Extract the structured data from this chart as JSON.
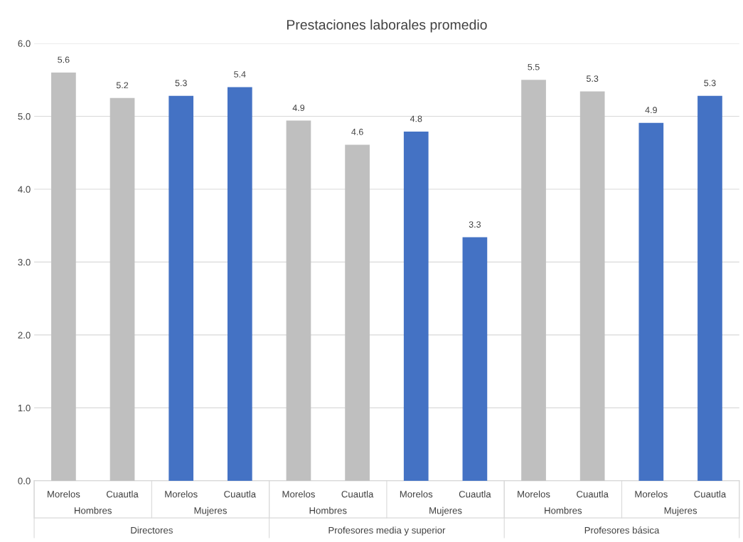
{
  "chart_data": {
    "type": "bar",
    "title": "Prestaciones laborales promedio",
    "categories": [
      "Morelos",
      "Cuautla",
      "Morelos",
      "Cuautla",
      "Morelos",
      "Cuautla",
      "Morelos",
      "Cuautla",
      "Morelos",
      "Cuautla",
      "Morelos",
      "Cuautla"
    ],
    "values": [
      5.6,
      5.25,
      5.28,
      5.4,
      4.94,
      4.61,
      4.79,
      3.34,
      5.5,
      5.34,
      4.91,
      5.28
    ],
    "value_labels": [
      "5.6",
      "5.2",
      "5.3",
      "5.4",
      "4.9",
      "4.6",
      "4.8",
      "3.3",
      "5.5",
      "5.3",
      "4.9",
      "5.3"
    ],
    "colors": [
      "#bfbfbf",
      "#bfbfbf",
      "#4472c4",
      "#4472c4",
      "#bfbfbf",
      "#bfbfbf",
      "#4472c4",
      "#4472c4",
      "#bfbfbf",
      "#bfbfbf",
      "#4472c4",
      "#4472c4"
    ],
    "annotations": [
      "Hombres",
      "Mujeres",
      "Hombres",
      "Mujeres",
      "Hombres",
      "Mujeres",
      "Directores",
      "Profesores media y superior",
      "Profesores básica"
    ],
    "ylim": [
      0,
      6
    ],
    "yticks": [
      {
        "value": 0,
        "label": "0.0"
      },
      {
        "value": 1,
        "label": "1.0"
      },
      {
        "value": 2,
        "label": "2.0"
      },
      {
        "value": 3,
        "label": "3.0"
      },
      {
        "value": 4,
        "label": "4.0"
      },
      {
        "value": 5,
        "label": "5.0"
      },
      {
        "value": 6,
        "label": "6.0"
      }
    ],
    "grid": "y"
  }
}
